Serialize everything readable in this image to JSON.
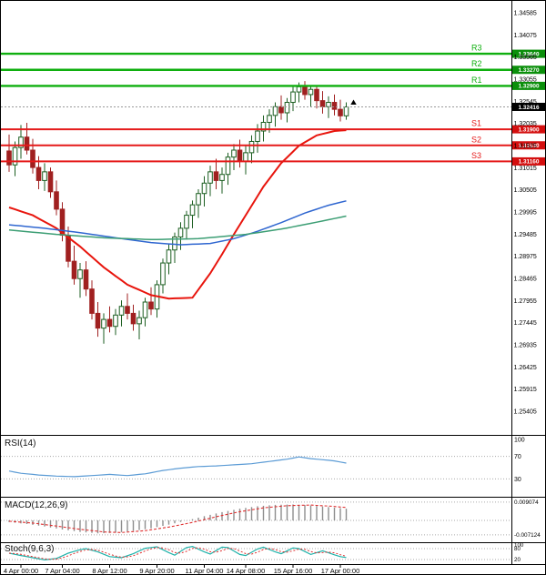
{
  "chart_data": {
    "type": "candlestick",
    "colors": {
      "background": "#ffffff",
      "border": "#000000",
      "bull_fill": "#ffffff",
      "bull_border": "#1b5e20",
      "bear_fill": "#a02020",
      "resistance_line": "#0faf0f",
      "resistance_badge": "#0b8f0b",
      "support_line": "#e51a1a",
      "support_badge": "#d40f0f",
      "current_price_badge": "#000000",
      "badge_text": "#ffffff",
      "ma_fast": "#e8150d",
      "ma_mid": "#2f66d0",
      "ma_slow": "#3c9e74",
      "rsi_line": "#5b9bd5",
      "macd_histogram": "#8e8e8e",
      "macd_signal": "#e03030",
      "stoch_main": "#20b2aa",
      "stoch_signal": "#e03030",
      "axis_text": "#000000",
      "grid_dotted": "#aaaaaa"
    },
    "price_axis": {
      "labels": [
        "1.34585",
        "1.34075",
        "1.33565",
        "1.33055",
        "1.32545",
        "1.32035",
        "1.31525",
        "1.31015",
        "1.30505",
        "1.29995",
        "1.29485",
        "1.28975",
        "1.28465",
        "1.27955",
        "1.27445",
        "1.26935",
        "1.26425",
        "1.25915",
        "1.25405"
      ]
    },
    "time_axis": {
      "ticks": [
        {
          "index": 2,
          "label": "4 Apr 00:00"
        },
        {
          "index": 9,
          "label": "7 Apr 04:00"
        },
        {
          "index": 17,
          "label": "8 Apr 12:00"
        },
        {
          "index": 25,
          "label": "9 Apr 20:00"
        },
        {
          "index": 33,
          "label": "11 Apr 04:00"
        },
        {
          "index": 40,
          "label": "14 Apr 08:00"
        },
        {
          "index": 48,
          "label": "15 Apr 16:00"
        },
        {
          "index": 56,
          "label": "17 Apr 00:00"
        }
      ]
    },
    "levels": {
      "resistance": [
        {
          "name": "R3",
          "value": 1.3364,
          "badge": "1.33640"
        },
        {
          "name": "R2",
          "value": 1.3327,
          "badge": "1.33270"
        },
        {
          "name": "R1",
          "value": 1.329,
          "badge": "1.32900"
        }
      ],
      "support": [
        {
          "name": "S1",
          "value": 1.319,
          "badge": "1.31900"
        },
        {
          "name": "S2",
          "value": 1.3153,
          "badge": "1.31530"
        },
        {
          "name": "S3",
          "value": 1.3116,
          "badge": "1.31160"
        }
      ]
    },
    "current_price": {
      "value": 1.32416,
      "label": "1.32416"
    },
    "arrow_marker": {
      "index": 57,
      "price": 1.3252
    },
    "candles": [
      [
        1.314,
        1.3178,
        1.3092,
        1.3108
      ],
      [
        1.3108,
        1.3162,
        1.3082,
        1.3148
      ],
      [
        1.3148,
        1.32,
        1.3122,
        1.3172
      ],
      [
        1.3172,
        1.3205,
        1.3132,
        1.3142
      ],
      [
        1.3142,
        1.3168,
        1.3088,
        1.3102
      ],
      [
        1.3102,
        1.3128,
        1.3052,
        1.3072
      ],
      [
        1.3072,
        1.3112,
        1.3048,
        1.3092
      ],
      [
        1.3092,
        1.3102,
        1.3032,
        1.3046
      ],
      [
        1.3046,
        1.3072,
        1.2992,
        1.3006
      ],
      [
        1.3006,
        1.3022,
        1.2932,
        1.2946
      ],
      [
        1.2946,
        1.2966,
        1.2872,
        1.2886
      ],
      [
        1.2886,
        1.2922,
        1.2832,
        1.2846
      ],
      [
        1.2846,
        1.2882,
        1.2802,
        1.2866
      ],
      [
        1.2866,
        1.2886,
        1.2806,
        1.2822
      ],
      [
        1.2822,
        1.2842,
        1.2752,
        1.2766
      ],
      [
        1.2766,
        1.2792,
        1.2712,
        1.2732
      ],
      [
        1.2732,
        1.2766,
        1.2696,
        1.2752
      ],
      [
        1.2752,
        1.2782,
        1.2722,
        1.2736
      ],
      [
        1.2736,
        1.2776,
        1.2716,
        1.2762
      ],
      [
        1.2762,
        1.2796,
        1.2736,
        1.2782
      ],
      [
        1.2782,
        1.2812,
        1.2752,
        1.2766
      ],
      [
        1.2766,
        1.2786,
        1.2726,
        1.2742
      ],
      [
        1.2742,
        1.2772,
        1.2706,
        1.2756
      ],
      [
        1.2756,
        1.2802,
        1.2736,
        1.2792
      ],
      [
        1.2792,
        1.2826,
        1.2762,
        1.2776
      ],
      [
        1.2776,
        1.2842,
        1.2756,
        1.2832
      ],
      [
        1.2832,
        1.2892,
        1.2812,
        1.2882
      ],
      [
        1.2882,
        1.2926,
        1.2856,
        1.2912
      ],
      [
        1.2912,
        1.2952,
        1.2882,
        1.2942
      ],
      [
        1.2942,
        1.2976,
        1.2912,
        1.2962
      ],
      [
        1.2962,
        1.3002,
        1.2936,
        1.2992
      ],
      [
        1.2992,
        1.3026,
        1.2962,
        1.3016
      ],
      [
        1.3016,
        1.3052,
        1.2986,
        1.3042
      ],
      [
        1.3042,
        1.3082,
        1.3012,
        1.3066
      ],
      [
        1.3066,
        1.3106,
        1.3036,
        1.3092
      ],
      [
        1.3092,
        1.3122,
        1.3052,
        1.3072
      ],
      [
        1.3072,
        1.3102,
        1.3042,
        1.3086
      ],
      [
        1.3086,
        1.3136,
        1.3062,
        1.3126
      ],
      [
        1.3126,
        1.3156,
        1.3096,
        1.3142
      ],
      [
        1.3142,
        1.3166,
        1.3102,
        1.3116
      ],
      [
        1.3116,
        1.3152,
        1.3086,
        1.3136
      ],
      [
        1.3136,
        1.3176,
        1.3112,
        1.3162
      ],
      [
        1.3162,
        1.3202,
        1.3136,
        1.3186
      ],
      [
        1.3186,
        1.3222,
        1.3162,
        1.3206
      ],
      [
        1.3206,
        1.3236,
        1.3182,
        1.3222
      ],
      [
        1.3222,
        1.3252,
        1.3196,
        1.3242
      ],
      [
        1.3242,
        1.3268,
        1.3212,
        1.3228
      ],
      [
        1.3228,
        1.3262,
        1.3206,
        1.3252
      ],
      [
        1.3252,
        1.3288,
        1.3232,
        1.3276
      ],
      [
        1.3276,
        1.3298,
        1.3252,
        1.3288
      ],
      [
        1.3288,
        1.3301,
        1.3258,
        1.327
      ],
      [
        1.327,
        1.3292,
        1.3242,
        1.3282
      ],
      [
        1.3282,
        1.3291,
        1.3238,
        1.3256
      ],
      [
        1.3256,
        1.3278,
        1.3226,
        1.3242
      ],
      [
        1.3242,
        1.3266,
        1.3216,
        1.3252
      ],
      [
        1.3252,
        1.327,
        1.3222,
        1.3236
      ],
      [
        1.3236,
        1.3258,
        1.3208,
        1.3221
      ],
      [
        1.3221,
        1.3252,
        1.3212,
        1.32416
      ]
    ],
    "moving_averages": [
      {
        "name": "fast",
        "color": "#e8150d",
        "points": [
          [
            0,
            1.301
          ],
          [
            4,
            1.2992
          ],
          [
            8,
            1.2962
          ],
          [
            12,
            1.292
          ],
          [
            16,
            1.2872
          ],
          [
            20,
            1.2832
          ],
          [
            24,
            1.2808
          ],
          [
            27,
            1.28
          ],
          [
            31,
            1.2802
          ],
          [
            34,
            1.2858
          ],
          [
            36,
            1.2902
          ],
          [
            38,
            1.2948
          ],
          [
            40,
            1.2992
          ],
          [
            43,
            1.3058
          ],
          [
            46,
            1.3112
          ],
          [
            49,
            1.3152
          ],
          [
            52,
            1.3176
          ],
          [
            55,
            1.3186
          ],
          [
            57,
            1.3188
          ]
        ]
      },
      {
        "name": "mid",
        "color": "#2f66d0",
        "points": [
          [
            0,
            1.297
          ],
          [
            6,
            1.2962
          ],
          [
            12,
            1.2952
          ],
          [
            18,
            1.294
          ],
          [
            24,
            1.2929
          ],
          [
            29,
            1.2924
          ],
          [
            34,
            1.2927
          ],
          [
            38,
            1.2938
          ],
          [
            42,
            1.2955
          ],
          [
            46,
            1.2975
          ],
          [
            50,
            1.2997
          ],
          [
            54,
            1.3015
          ],
          [
            57,
            1.3025
          ]
        ]
      },
      {
        "name": "slow",
        "color": "#3c9e74",
        "points": [
          [
            0,
            1.2958
          ],
          [
            8,
            1.2948
          ],
          [
            16,
            1.294
          ],
          [
            24,
            1.2936
          ],
          [
            32,
            1.2938
          ],
          [
            40,
            1.2948
          ],
          [
            46,
            1.296
          ],
          [
            52,
            1.2976
          ],
          [
            57,
            1.299
          ]
        ]
      }
    ],
    "indicators": {
      "rsi": {
        "label": "RSI(14)",
        "levels": [
          70,
          30
        ],
        "axis_labels": [
          {
            "value": 100,
            "text": "100"
          },
          {
            "value": 70,
            "text": "70"
          },
          {
            "value": 30,
            "text": "30"
          }
        ],
        "points": [
          [
            0,
            44
          ],
          [
            2,
            40
          ],
          [
            5,
            37
          ],
          [
            8,
            35
          ],
          [
            11,
            34
          ],
          [
            14,
            36
          ],
          [
            17,
            38
          ],
          [
            20,
            36
          ],
          [
            23,
            39
          ],
          [
            26,
            45
          ],
          [
            29,
            49
          ],
          [
            32,
            52
          ],
          [
            35,
            53
          ],
          [
            38,
            55
          ],
          [
            41,
            57
          ],
          [
            44,
            61
          ],
          [
            47,
            65
          ],
          [
            49,
            69
          ],
          [
            51,
            66
          ],
          [
            53,
            64
          ],
          [
            55,
            62
          ],
          [
            57,
            58
          ]
        ]
      },
      "macd": {
        "label": "MACD(12,26,9)",
        "axis_labels": [
          {
            "value": 0.009074,
            "text": "0.009074"
          },
          {
            "value": -0.007124,
            "text": "-0.007124"
          }
        ],
        "main": [
          [
            0,
            -0.0008
          ],
          [
            3,
            -0.0018
          ],
          [
            6,
            -0.003
          ],
          [
            9,
            -0.0045
          ],
          [
            12,
            -0.0057
          ],
          [
            15,
            -0.0064
          ],
          [
            18,
            -0.0061
          ],
          [
            21,
            -0.0052
          ],
          [
            24,
            -0.0039
          ],
          [
            27,
            -0.0021
          ],
          [
            30,
            -0.0001
          ],
          [
            33,
            0.0021
          ],
          [
            36,
            0.0041
          ],
          [
            39,
            0.0058
          ],
          [
            42,
            0.007
          ],
          [
            45,
            0.0077
          ],
          [
            48,
            0.0079
          ],
          [
            51,
            0.0074
          ],
          [
            54,
            0.0066
          ],
          [
            57,
            0.0058
          ]
        ],
        "signal": [
          [
            0,
            -0.0004
          ],
          [
            4,
            -0.0013
          ],
          [
            8,
            -0.0028
          ],
          [
            12,
            -0.0044
          ],
          [
            16,
            -0.0057
          ],
          [
            19,
            -0.006
          ],
          [
            23,
            -0.0051
          ],
          [
            27,
            -0.0033
          ],
          [
            31,
            -0.001
          ],
          [
            35,
            0.0018
          ],
          [
            39,
            0.0043
          ],
          [
            43,
            0.0062
          ],
          [
            47,
            0.0073
          ],
          [
            51,
            0.0076
          ],
          [
            54,
            0.0071
          ],
          [
            57,
            0.0064
          ]
        ]
      },
      "stoch": {
        "label": "Stoch(9,6,3)",
        "levels": [
          80,
          20
        ],
        "axis_labels": [
          {
            "value": 100,
            "text": "100"
          },
          {
            "value": 80,
            "text": "80"
          },
          {
            "value": 20,
            "text": "20"
          }
        ],
        "main": [
          [
            0,
            55
          ],
          [
            2,
            42
          ],
          [
            4,
            30
          ],
          [
            6,
            18
          ],
          [
            8,
            26
          ],
          [
            10,
            55
          ],
          [
            12,
            74
          ],
          [
            13,
            80
          ],
          [
            15,
            62
          ],
          [
            17,
            36
          ],
          [
            19,
            30
          ],
          [
            21,
            52
          ],
          [
            23,
            82
          ],
          [
            25,
            90
          ],
          [
            27,
            58
          ],
          [
            28,
            44
          ],
          [
            30,
            86
          ],
          [
            31,
            92
          ],
          [
            33,
            62
          ],
          [
            34,
            50
          ],
          [
            36,
            88
          ],
          [
            37,
            86
          ],
          [
            39,
            48
          ],
          [
            40,
            42
          ],
          [
            42,
            78
          ],
          [
            43,
            88
          ],
          [
            45,
            62
          ],
          [
            46,
            52
          ],
          [
            48,
            84
          ],
          [
            49,
            80
          ],
          [
            51,
            48
          ],
          [
            53,
            68
          ],
          [
            55,
            46
          ],
          [
            56,
            36
          ],
          [
            57,
            31
          ]
        ]
      }
    }
  }
}
